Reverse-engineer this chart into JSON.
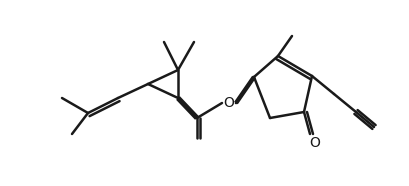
{
  "bg_color": "#ffffff",
  "line_color": "#1a1a1a",
  "line_width": 1.8,
  "fig_width": 4.1,
  "fig_height": 1.86,
  "dpi": 100
}
